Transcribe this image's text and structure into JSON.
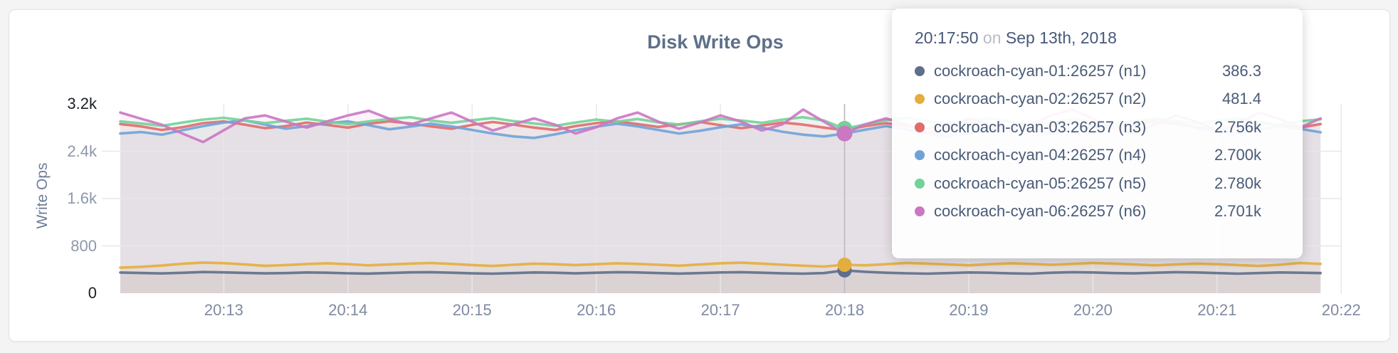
{
  "chart_data": {
    "type": "line",
    "title": "Disk Write Ops",
    "ylabel": "Write Ops",
    "x_start_time": "20:12:10",
    "x_interval_seconds": 10,
    "xticklabels": [
      "20:13",
      "20:14",
      "20:15",
      "20:16",
      "20:17",
      "20:18",
      "20:19",
      "20:20",
      "20:21",
      "20:22"
    ],
    "yticks": [
      {
        "label": "3.2k",
        "value": 3200
      },
      {
        "label": "2.4k",
        "value": 2400
      },
      {
        "label": "1.6k",
        "value": 1600
      },
      {
        "label": "800",
        "value": 800
      },
      {
        "label": "0",
        "value": 0
      }
    ],
    "ylim": [
      0,
      3200
    ],
    "grid": true,
    "hover": {
      "index": 35,
      "time": "20:17:50"
    },
    "series": [
      {
        "name": "cockroach-cyan-01:26257 (n1)",
        "color": "#5e6e8c",
        "values": [
          350,
          342,
          334,
          345,
          358,
          352,
          344,
          336,
          341,
          351,
          346,
          337,
          332,
          342,
          352,
          356,
          346,
          336,
          331,
          341,
          351,
          346,
          336,
          346,
          356,
          351,
          341,
          332,
          341,
          351,
          356,
          346,
          336,
          331,
          341,
          386.3,
          362,
          347,
          337,
          331,
          341,
          351,
          346,
          336,
          331,
          346,
          356,
          351,
          341,
          336,
          346,
          356,
          351,
          341,
          331,
          341,
          351,
          346,
          341
        ]
      },
      {
        "name": "cockroach-cyan-02:26257 (n2)",
        "color": "#e3ae3d",
        "values": [
          432,
          446,
          468,
          498,
          518,
          508,
          488,
          462,
          476,
          494,
          506,
          491,
          471,
          486,
          501,
          511,
          496,
          476,
          461,
          481,
          501,
          491,
          476,
          491,
          506,
          496,
          481,
          466,
          486,
          506,
          516,
          501,
          481,
          466,
          451,
          481.4,
          471,
          491,
          511,
          501,
          486,
          471,
          491,
          506,
          496,
          481,
          496,
          511,
          501,
          486,
          471,
          486,
          501,
          491,
          476,
          461,
          481,
          511,
          496
        ]
      },
      {
        "name": "cockroach-cyan-03:26257 (n3)",
        "color": "#e06c6c",
        "values": [
          2860,
          2820,
          2760,
          2805,
          2875,
          2905,
          2850,
          2790,
          2825,
          2885,
          2845,
          2800,
          2865,
          2905,
          2870,
          2820,
          2780,
          2845,
          2895,
          2850,
          2800,
          2760,
          2825,
          2875,
          2905,
          2860,
          2810,
          2855,
          2895,
          2840,
          2790,
          2835,
          2885,
          2850,
          2800,
          2756,
          2825,
          2875,
          2830,
          2780,
          2845,
          2895,
          2850,
          2800,
          2760,
          2835,
          2885,
          2840,
          2790,
          2855,
          2905,
          2860,
          2810,
          2770,
          2835,
          2885,
          2840,
          2800,
          2860
        ]
      },
      {
        "name": "cockroach-cyan-04:26257 (n4)",
        "color": "#6fa3d8",
        "values": [
          2700,
          2725,
          2680,
          2755,
          2825,
          2885,
          2925,
          2850,
          2780,
          2825,
          2875,
          2905,
          2840,
          2770,
          2815,
          2865,
          2820,
          2760,
          2700,
          2650,
          2625,
          2685,
          2755,
          2815,
          2865,
          2820,
          2760,
          2700,
          2745,
          2805,
          2855,
          2800,
          2730,
          2680,
          2650,
          2700,
          2765,
          2825,
          2770,
          2700,
          2650,
          2705,
          2765,
          2815,
          2760,
          2700,
          2745,
          2805,
          2855,
          2905,
          2945,
          2880,
          2800,
          2740,
          2700,
          2765,
          2825,
          2780,
          2720
        ]
      },
      {
        "name": "cockroach-cyan-05:26257 (n5)",
        "color": "#74d199",
        "values": [
          2905,
          2870,
          2830,
          2885,
          2935,
          2965,
          2920,
          2875,
          2915,
          2950,
          2900,
          2860,
          2905,
          2945,
          2975,
          2920,
          2880,
          2925,
          2960,
          2910,
          2870,
          2830,
          2885,
          2935,
          2900,
          2945,
          2890,
          2850,
          2905,
          2950,
          2920,
          2880,
          2935,
          2975,
          2920,
          2780,
          2855,
          2925,
          2965,
          2905,
          2860,
          2915,
          2950,
          2900,
          2850,
          2895,
          2940,
          2900,
          2860,
          2905,
          2950,
          2910,
          2870,
          2915,
          2950,
          2900,
          2850,
          2905,
          2940
        ]
      },
      {
        "name": "cockroach-cyan-06:26257 (n6)",
        "color": "#cb77c2",
        "values": [
          3055,
          2950,
          2850,
          2700,
          2555,
          2755,
          2955,
          3005,
          2900,
          2800,
          2905,
          3005,
          3085,
          2950,
          2850,
          2955,
          3055,
          2900,
          2750,
          2855,
          2955,
          2850,
          2700,
          2805,
          2955,
          3055,
          2900,
          2780,
          2885,
          3005,
          2900,
          2750,
          2855,
          3105,
          2900,
          2701,
          2855,
          2955,
          2850,
          2700,
          2805,
          2955,
          2850,
          2750,
          2855,
          3005,
          3105,
          2950,
          2800,
          2700,
          2855,
          3005,
          2900,
          2750,
          2855,
          3055,
          2950,
          2800,
          2955
        ]
      }
    ]
  },
  "tooltip": {
    "time": "20:17:50",
    "conjunction": "on",
    "date": "Sep 13th, 2018",
    "rows": [
      {
        "label": "cockroach-cyan-01:26257 (n1)",
        "value": "386.3",
        "color": "#5e6e8c"
      },
      {
        "label": "cockroach-cyan-02:26257 (n2)",
        "value": "481.4",
        "color": "#e3ae3d"
      },
      {
        "label": "cockroach-cyan-03:26257 (n3)",
        "value": "2.756k",
        "color": "#e06c6c"
      },
      {
        "label": "cockroach-cyan-04:26257 (n4)",
        "value": "2.700k",
        "color": "#6fa3d8"
      },
      {
        "label": "cockroach-cyan-05:26257 (n5)",
        "value": "2.780k",
        "color": "#74d199"
      },
      {
        "label": "cockroach-cyan-06:26257 (n6)",
        "value": "2.701k",
        "color": "#cb77c2"
      }
    ]
  }
}
